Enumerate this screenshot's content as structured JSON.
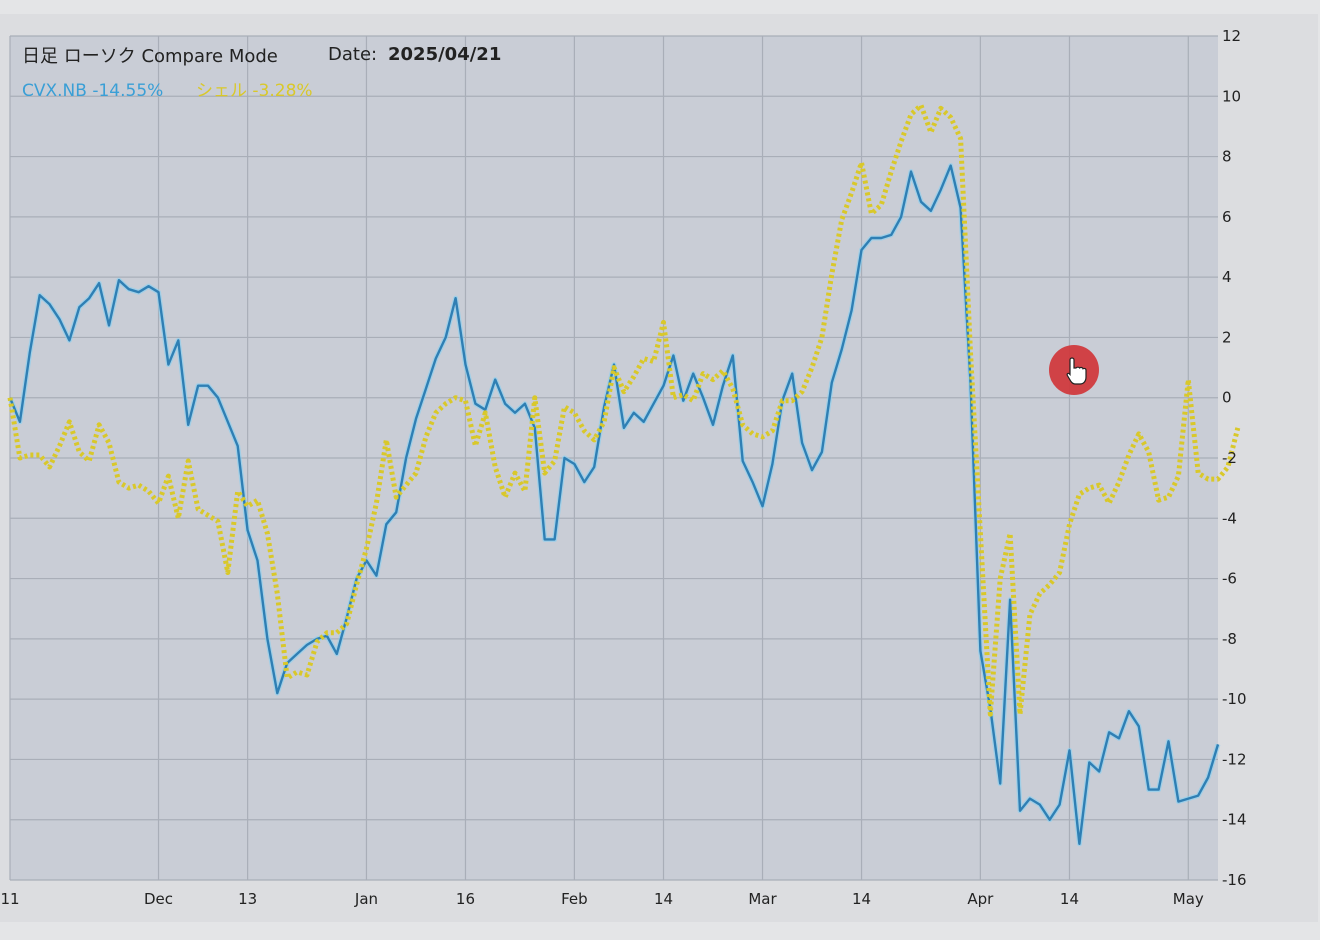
{
  "header": {
    "title": "日足 ローソク Compare Mode",
    "date_label": "Date:",
    "date_value": "2025/04/21"
  },
  "legend": [
    {
      "label": "CVX.NB -14.55%",
      "color": "#3a9fd6"
    },
    {
      "label": "シェル -3.28%",
      "color": "#d9c82a"
    }
  ],
  "cursor": {
    "icon": "hand-pointer-icon",
    "color": "#d0363a"
  },
  "chart_data": {
    "type": "line",
    "xlabel": "",
    "ylabel": "",
    "ylim": [
      -16,
      12
    ],
    "yticks": [
      12,
      10,
      8,
      6,
      4,
      2,
      0,
      -2,
      -4,
      -6,
      -8,
      -10,
      -12,
      -14,
      -16
    ],
    "xticks": [
      {
        "label": "11",
        "idx": 0
      },
      {
        "label": "Dec",
        "idx": 15
      },
      {
        "label": "13",
        "idx": 24
      },
      {
        "label": "Jan",
        "idx": 36
      },
      {
        "label": "16",
        "idx": 46
      },
      {
        "label": "Feb",
        "idx": 57
      },
      {
        "label": "14",
        "idx": 66
      },
      {
        "label": "Mar",
        "idx": 76
      },
      {
        "label": "14",
        "idx": 86
      },
      {
        "label": "Apr",
        "idx": 98
      },
      {
        "label": "14",
        "idx": 107
      },
      {
        "label": "May",
        "idx": 119
      }
    ],
    "grid": true,
    "series": [
      {
        "name": "CVX.NB",
        "color": "#3a9fd6",
        "style": "solid",
        "values": [
          0,
          -0.8,
          1.5,
          3.4,
          3.1,
          2.6,
          1.9,
          3.0,
          3.3,
          3.8,
          2.4,
          3.9,
          3.6,
          3.5,
          3.7,
          3.5,
          1.1,
          1.9,
          -0.9,
          0.4,
          0.4,
          0,
          -0.8,
          -1.6,
          -4.4,
          -5.4,
          -8.0,
          -9.8,
          -8.8,
          -8.5,
          -8.2,
          -8.0,
          -7.9,
          -8.5,
          -7.3,
          -6.0,
          -5.4,
          -5.9,
          -4.2,
          -3.8,
          -2.0,
          -0.7,
          0.3,
          1.3,
          2.0,
          3.3,
          1.1,
          -0.2,
          -0.4,
          0.6,
          -0.2,
          -0.5,
          -0.2,
          -1.0,
          -4.7,
          -4.7,
          -2.0,
          -2.2,
          -2.8,
          -2.3,
          -0.3,
          1.1,
          -1.0,
          -0.5,
          -0.8,
          -0.2,
          0.4,
          1.4,
          -0.1,
          0.8,
          0.0,
          -0.9,
          0.4,
          1.4,
          -2.1,
          -2.8,
          -3.6,
          -2.2,
          -0.1,
          0.8,
          -1.5,
          -2.4,
          -1.8,
          0.5,
          1.6,
          2.9,
          4.9,
          5.3,
          5.3,
          5.4,
          6.0,
          7.5,
          6.5,
          6.2,
          6.9,
          7.7,
          6.3,
          0.5,
          -8.4,
          -10.3,
          -12.8,
          -6.7,
          -13.7,
          -13.3,
          -13.5,
          -14.0,
          -13.5,
          -11.7,
          -14.8,
          -12.1,
          -12.4,
          -11.1,
          -11.3,
          -10.4,
          -10.9,
          -13.0,
          -13.0,
          -11.4,
          -13.4,
          -13.3,
          -13.2,
          -12.6,
          -11.5
        ]
      },
      {
        "name": "シェル",
        "color": "#d9c82a",
        "style": "dotted",
        "values": [
          0,
          -2.0,
          -1.9,
          -1.9,
          -2.3,
          -1.6,
          -0.8,
          -1.8,
          -2.1,
          -0.9,
          -1.5,
          -2.8,
          -3.0,
          -2.9,
          -3.1,
          -3.5,
          -2.6,
          -4.0,
          -2.1,
          -3.7,
          -3.9,
          -4.1,
          -5.8,
          -3.1,
          -3.6,
          -3.4,
          -4.5,
          -6.5,
          -9.3,
          -9.1,
          -9.2,
          -8.1,
          -7.8,
          -7.8,
          -7.5,
          -6.2,
          -5.0,
          -3.5,
          -1.4,
          -3.3,
          -2.9,
          -2.5,
          -1.3,
          -0.5,
          -0.2,
          0,
          -0.1,
          -1.6,
          -0.5,
          -2.3,
          -3.3,
          -2.5,
          -3.1,
          0,
          -2.5,
          -2.1,
          -0.3,
          -0.5,
          -1.1,
          -1.4,
          -0.8,
          1.0,
          0.2,
          0.7,
          1.3,
          1.2,
          2.5,
          0,
          0.1,
          -0.1,
          0.8,
          0.6,
          0.9,
          0.3,
          -0.9,
          -1.2,
          -1.3,
          -1.1,
          -0.1,
          -0.1,
          0.2,
          1.0,
          2.0,
          4.1,
          5.9,
          6.8,
          7.8,
          6.1,
          6.4,
          7.5,
          8.5,
          9.4,
          9.7,
          8.8,
          9.6,
          9.3,
          8.6,
          1.5,
          -4.5,
          -10.5,
          -6.0,
          -4.5,
          -10.5,
          -7.2,
          -6.5,
          -6.2,
          -5.8,
          -4.2,
          -3.2,
          -3.0,
          -2.9,
          -3.5,
          -2.8,
          -1.9,
          -1.2,
          -1.8,
          -3.4,
          -3.3,
          -2.6,
          0.6,
          -2.5,
          -2.7,
          -2.7,
          -2.3,
          -1.0
        ]
      }
    ]
  }
}
